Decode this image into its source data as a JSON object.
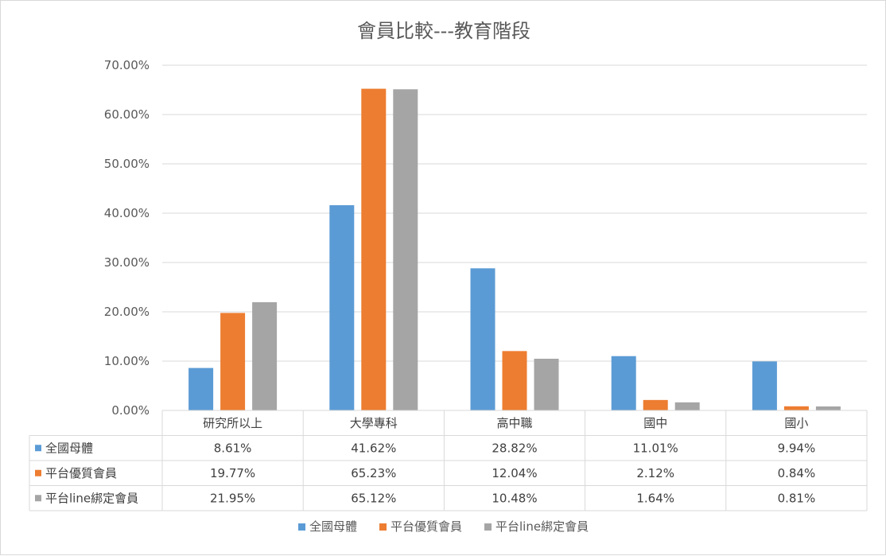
{
  "chart_data": {
    "type": "bar",
    "title": "會員比較---教育階段",
    "categories": [
      "研究所以上",
      "大學專科",
      "高中職",
      "國中",
      "國小"
    ],
    "series": [
      {
        "name": "全國母體",
        "color": "#5b9bd5",
        "values": [
          8.61,
          41.62,
          28.82,
          11.01,
          9.94
        ],
        "labels": [
          "8.61%",
          "41.62%",
          "28.82%",
          "11.01%",
          "9.94%"
        ]
      },
      {
        "name": "平台優質會員",
        "color": "#ed7d31",
        "values": [
          19.77,
          65.23,
          12.04,
          2.12,
          0.84
        ],
        "labels": [
          "19.77%",
          "65.23%",
          "12.04%",
          "2.12%",
          "0.84%"
        ]
      },
      {
        "name": "平台line綁定會員",
        "color": "#a5a5a5",
        "values": [
          21.95,
          65.12,
          10.48,
          1.64,
          0.81
        ],
        "labels": [
          "21.95%",
          "65.12%",
          "10.48%",
          "1.64%",
          "0.81%"
        ]
      }
    ],
    "ylim": [
      0,
      70
    ],
    "yticks": [
      0,
      10,
      20,
      30,
      40,
      50,
      60,
      70
    ],
    "ytick_labels": [
      "0.00%",
      "10.00%",
      "20.00%",
      "30.00%",
      "40.00%",
      "50.00%",
      "60.00%",
      "70.00%"
    ],
    "grid": true,
    "data_table": true,
    "legend_position": "bottom"
  }
}
